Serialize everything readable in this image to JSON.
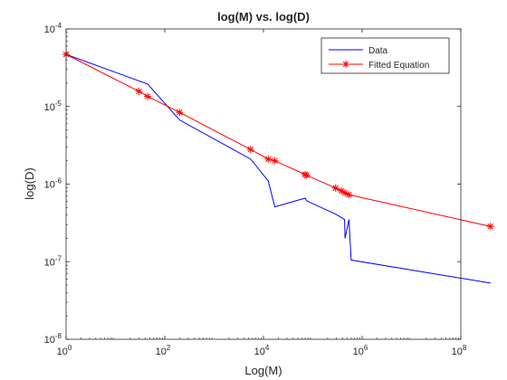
{
  "chart_data": {
    "type": "line",
    "title": "log(M) vs. log(D)",
    "xlabel": "Log(M)",
    "ylabel": "log(D)",
    "xscale": "log",
    "yscale": "log",
    "xlim": [
      1,
      100000000
    ],
    "ylim": [
      1e-08,
      0.0001
    ],
    "grid": false,
    "legend_position": "top-right",
    "x_ticks": [
      {
        "value": 1,
        "base": "10",
        "exp": "0"
      },
      {
        "value": 100,
        "base": "10",
        "exp": "2"
      },
      {
        "value": 10000,
        "base": "10",
        "exp": "4"
      },
      {
        "value": 1000000,
        "base": "10",
        "exp": "6"
      },
      {
        "value": 100000000,
        "base": "10",
        "exp": "8"
      }
    ],
    "y_ticks": [
      {
        "value": 1e-08,
        "base": "10",
        "exp": "-8"
      },
      {
        "value": 1e-07,
        "base": "10",
        "exp": "-7"
      },
      {
        "value": 1e-06,
        "base": "10",
        "exp": "-6"
      },
      {
        "value": 1e-05,
        "base": "10",
        "exp": "-5"
      },
      {
        "value": 0.0001,
        "base": "10",
        "exp": "-4"
      }
    ],
    "series": [
      {
        "name": "Data",
        "color": "#0000ff",
        "marker": "none",
        "x": [
          1,
          45,
          200,
          5500,
          12500,
          17000,
          70000,
          75000,
          290000,
          440000,
          450000,
          540000,
          600000,
          400000000
        ],
        "y": [
          4.7e-05,
          1.95e-05,
          6.7e-06,
          2.1e-06,
          1.1e-06,
          5.1e-07,
          6.6e-07,
          6.1e-07,
          4.1e-07,
          3.5e-07,
          2e-07,
          3.5e-07,
          1.05e-07,
          5.3e-08
        ]
      },
      {
        "name": "Fitted Equation",
        "color": "#ff0000",
        "marker": "asterisk",
        "x": [
          1,
          30,
          45,
          200,
          5500,
          12500,
          17000,
          70000,
          75000,
          290000,
          380000,
          450000,
          540000,
          400000000
        ],
        "y": [
          4.7e-05,
          1.57e-05,
          1.35e-05,
          8.4e-06,
          2.8e-06,
          2.1e-06,
          2e-06,
          1.33e-06,
          1.3e-06,
          8.9e-07,
          8.2e-07,
          7.7e-07,
          7.3e-07,
          2.85e-07
        ]
      }
    ]
  }
}
